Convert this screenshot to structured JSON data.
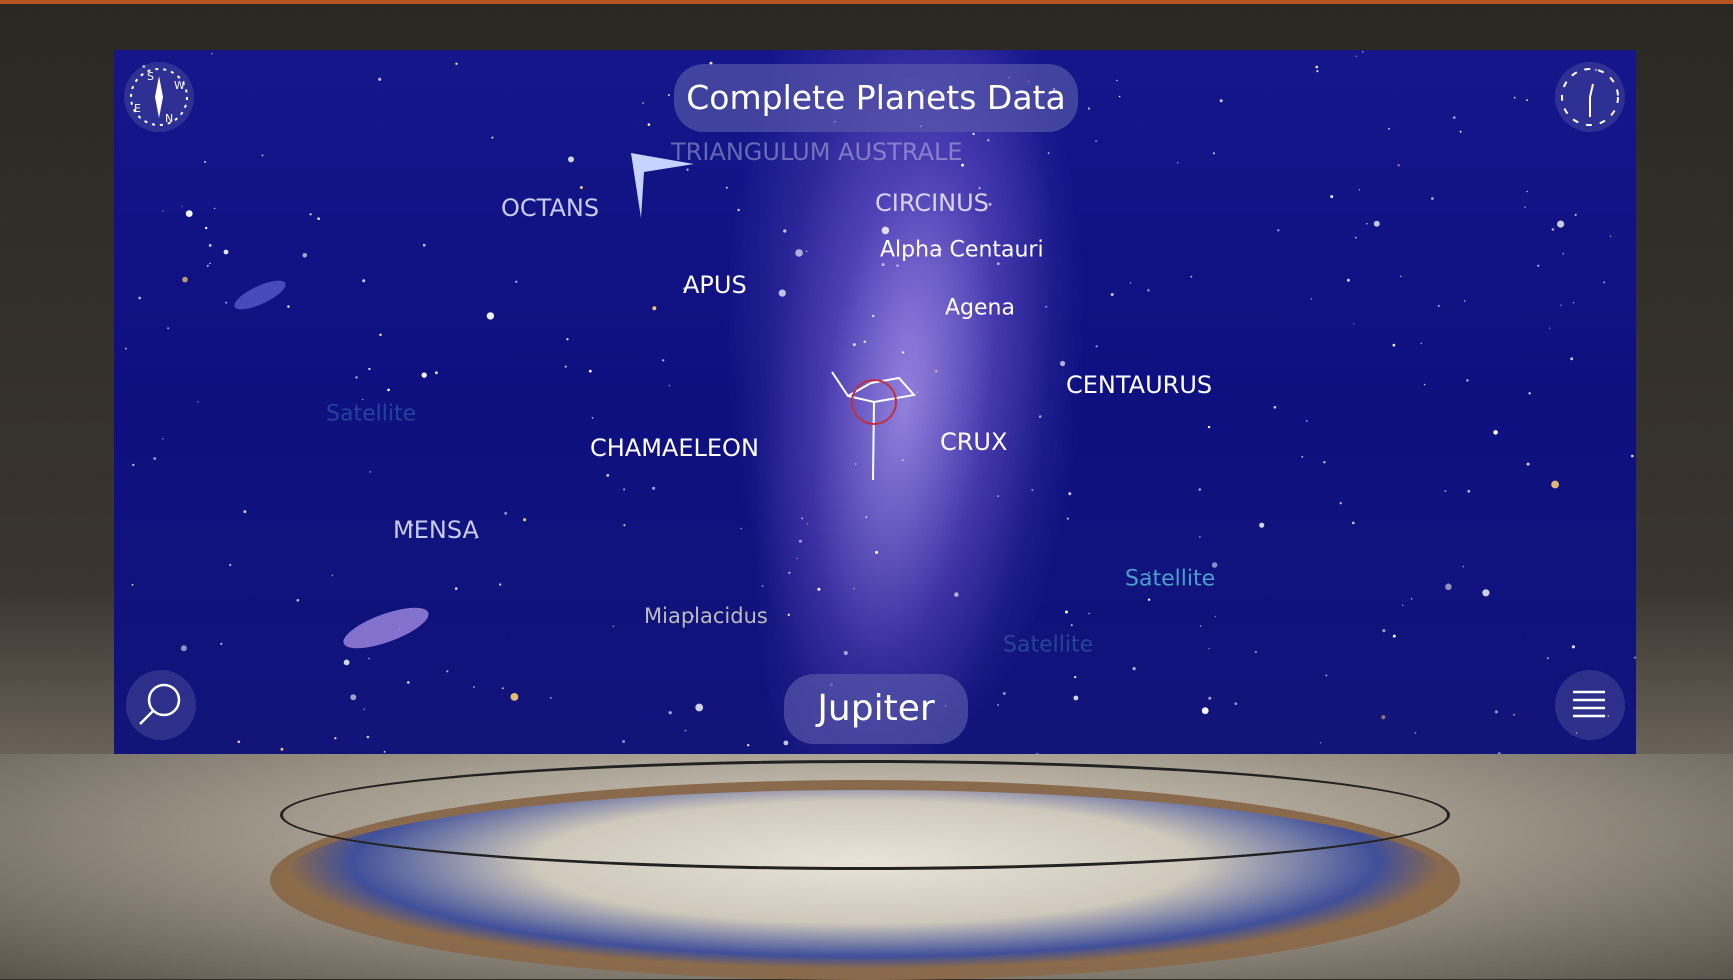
{
  "header": {
    "title": "Complete Planets Data"
  },
  "compass": {
    "letters": [
      "S",
      "W",
      "N",
      "E"
    ]
  },
  "sky_labels": [
    "TRIANGULUM AUSTRALE",
    "OCTANS",
    "CIRCINUS",
    "Alpha Centauri",
    "APUS",
    "Agena",
    "CENTAURUS",
    "Satellite",
    "CHAMAELEON",
    "CRUX",
    "MENSA",
    "Satellite",
    "Miaplacidus",
    "Satellite"
  ],
  "footer": {
    "selected": "Jupiter"
  }
}
